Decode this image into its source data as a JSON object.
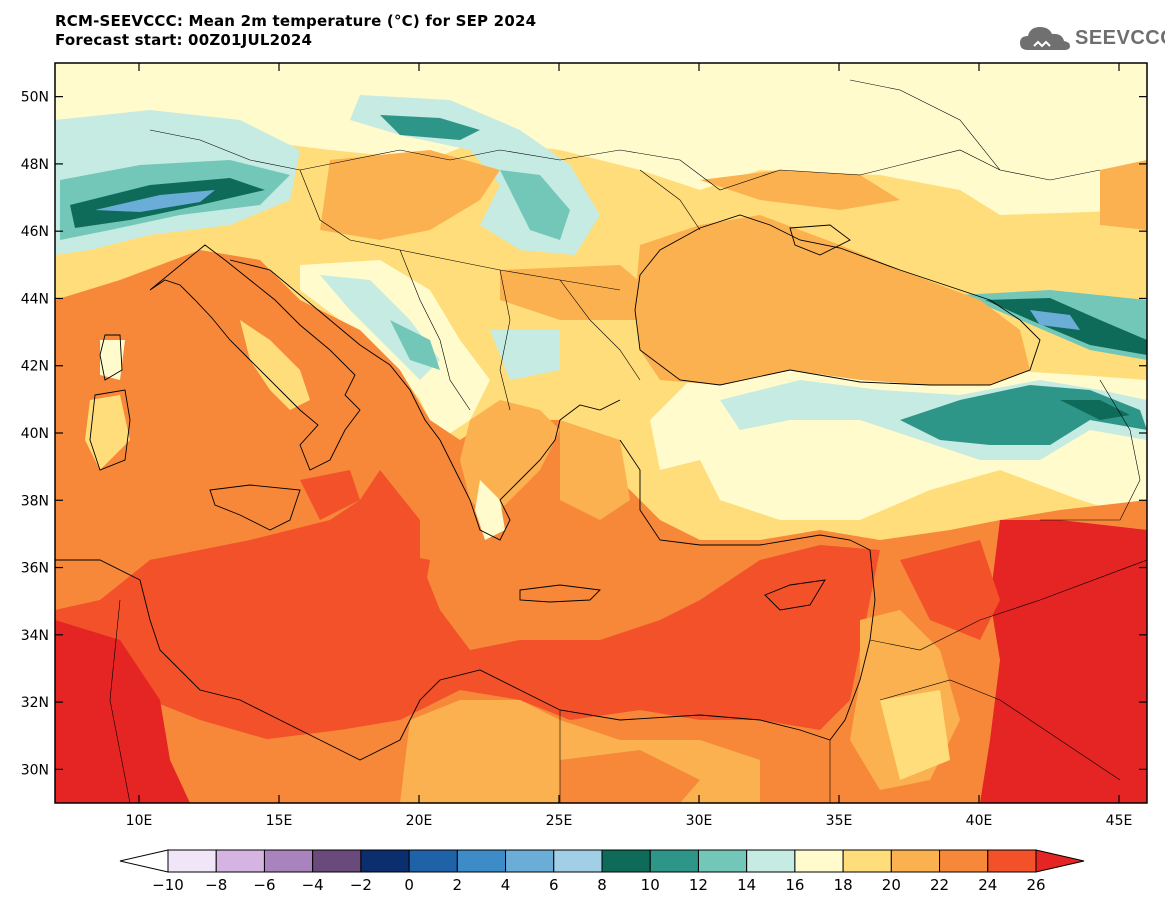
{
  "header": {
    "title_line1": "RCM-SEEVCCC: Mean 2m temperature (°C) for SEP 2024",
    "title_line2": "Forecast start: 00Z01JUL2024"
  },
  "logo": {
    "text": "SEEVCCC",
    "icon": "cloud-icon"
  },
  "map": {
    "lon_range": [
      7,
      46
    ],
    "lat_range": [
      29,
      51
    ],
    "lat_ticks": [
      "30N",
      "32N",
      "34N",
      "36N",
      "38N",
      "40N",
      "42N",
      "44N",
      "46N",
      "48N",
      "50N"
    ],
    "lat_tick_values": [
      30,
      32,
      34,
      36,
      38,
      40,
      42,
      44,
      46,
      48,
      50
    ],
    "lon_ticks": [
      "10E",
      "15E",
      "20E",
      "25E",
      "30E",
      "35E",
      "40E",
      "45E"
    ],
    "lon_tick_values": [
      10,
      15,
      20,
      25,
      30,
      35,
      40,
      45
    ]
  },
  "colorbar": {
    "labels": [
      "-10",
      "-8",
      "-6",
      "-4",
      "-2",
      "0",
      "2",
      "4",
      "6",
      "8",
      "10",
      "12",
      "14",
      "16",
      "18",
      "20",
      "22",
      "24",
      "26"
    ],
    "colors": [
      "#f0e6f7",
      "#d6b4e2",
      "#a983bd",
      "#6a4a7a",
      "#0a2e6e",
      "#1f62a8",
      "#3d8cc8",
      "#6aaed8",
      "#a1cfe5",
      "#0e6b5a",
      "#2d9688",
      "#72c7b8",
      "#c5ebe2",
      "#fffbcc",
      "#ffdd7a",
      "#fbb14f",
      "#f7883a",
      "#f2512a"
    ],
    "under_color": "#ffffff",
    "over_color": "#e52424"
  }
}
